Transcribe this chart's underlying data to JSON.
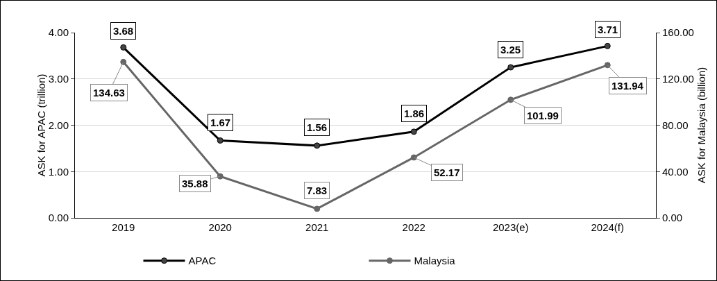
{
  "chart_data": {
    "type": "line",
    "ylabel": "ASK for APAC (trillion)",
    "y2label": "ASK for Malaysia (billion)",
    "categories": [
      "2019",
      "2020",
      "2021",
      "2022",
      "2023(e)",
      "2024(f)"
    ],
    "series": [
      {
        "name": "APAC",
        "color": "#000000",
        "values": [
          3.68,
          1.67,
          1.56,
          1.86,
          3.25,
          3.71
        ],
        "value_labels": [
          "3.68",
          "1.67",
          "1.56",
          "1.86",
          "3.25",
          "3.71"
        ]
      },
      {
        "name": "Malaysia",
        "color": "#666666",
        "axis": "y2",
        "values": [
          134.63,
          35.88,
          7.83,
          52.17,
          101.99,
          131.94
        ],
        "value_labels": [
          "134.63",
          "35.88",
          "7.83",
          "52.17",
          "101.99",
          "131.94"
        ]
      }
    ],
    "ylim": [
      0,
      4
    ],
    "yticks": [
      {
        "value": 0,
        "label": "0.00"
      },
      {
        "value": 1,
        "label": "1.00"
      },
      {
        "value": 2,
        "label": "2.00"
      },
      {
        "value": 3,
        "label": "3.00"
      },
      {
        "value": 4,
        "label": "4.00"
      }
    ],
    "y2lim": [
      0,
      160
    ],
    "y2ticks": [
      {
        "value": 0,
        "label": "0.00"
      },
      {
        "value": 40,
        "label": "40.00"
      },
      {
        "value": 80,
        "label": "80.00"
      },
      {
        "value": 120,
        "label": "120.00"
      },
      {
        "value": 160,
        "label": "160.00"
      }
    ],
    "grid": "y",
    "legend": "bottom",
    "marker": "circle",
    "line_style": "solid"
  }
}
